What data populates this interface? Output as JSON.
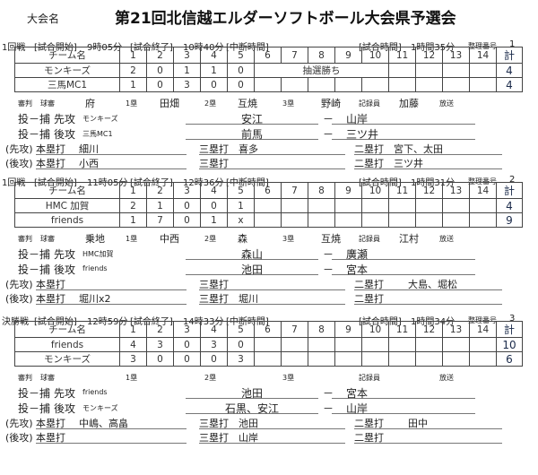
{
  "tournament_label": "大会名",
  "title": "第21回北信越エルダーソフトボール大会県予選会",
  "labels": {
    "start": "[試合開始]",
    "end": "[試合終了]",
    "break": "[中断時間]",
    "duration": "[試合時間]",
    "number": "整理番号",
    "team_col": "チーム名",
    "total_col": "計",
    "innings": [
      "1",
      "2",
      "3",
      "4",
      "5",
      "6",
      "7",
      "8",
      "9",
      "10",
      "11",
      "12",
      "13",
      "14"
    ],
    "umpire": "審判",
    "plate": "球審",
    "first": "1塁",
    "second": "2塁",
    "third": "3塁",
    "recorder": "記録員",
    "broadcast": "放送",
    "battery": "投－捕",
    "top": "先攻",
    "bottom": "後攻",
    "top_paren": "(先攻)",
    "bottom_paren": "(後攻)",
    "hr": "本塁打",
    "triple": "三塁打",
    "double": "二塁打",
    "dash": "－"
  },
  "games": [
    {
      "round": "1回戦",
      "start": "9時05分",
      "end": "10時40分",
      "duration": "1時間35分",
      "number": "1",
      "teams": [
        {
          "name": "モンキーズ",
          "innings": [
            "2",
            "0",
            "1",
            "1",
            "0",
            "",
            "",
            "",
            "",
            "",
            "",
            "",
            "",
            ""
          ],
          "total": "4"
        },
        {
          "name": "三馬MC1",
          "innings": [
            "1",
            "0",
            "3",
            "0",
            "0",
            "",
            "",
            "",
            "",
            "",
            "",
            "",
            "",
            ""
          ],
          "total": "4"
        }
      ],
      "note": "抽選勝ち",
      "officials": {
        "plate": "府",
        "first": "田畑",
        "second": "互焼",
        "third": "野崎",
        "recorder": "加藤",
        "broadcast": ""
      },
      "battery": [
        {
          "team": "モンキーズ",
          "pitcher": "安江",
          "catcher": "山岸"
        },
        {
          "team": "三馬MC1",
          "pitcher": "前馬",
          "catcher": "三ツ井"
        }
      ],
      "hits": [
        {
          "hr": "細川",
          "triple": "喜多",
          "double": "宮下、太田"
        },
        {
          "hr": "小西",
          "triple": "",
          "double": "三ツ井"
        }
      ]
    },
    {
      "round": "1回戦",
      "start": "11時05分",
      "end": "12時36分",
      "duration": "1時間31分",
      "number": "2",
      "teams": [
        {
          "name": "HMC 加賀",
          "innings": [
            "2",
            "1",
            "0",
            "0",
            "1",
            "",
            "",
            "",
            "",
            "",
            "",
            "",
            "",
            ""
          ],
          "total": "4"
        },
        {
          "name": "friends",
          "innings": [
            "1",
            "7",
            "0",
            "1",
            "x",
            "",
            "",
            "",
            "",
            "",
            "",
            "",
            "",
            ""
          ],
          "total": "9"
        }
      ],
      "note": "",
      "officials": {
        "plate": "乗地",
        "first": "中西",
        "second": "森",
        "third": "互焼",
        "recorder": "江村",
        "broadcast": ""
      },
      "battery": [
        {
          "team": "HMC加賀",
          "pitcher": "森山",
          "catcher": "廣瀬"
        },
        {
          "team": "friends",
          "pitcher": "池田",
          "catcher": "宮本"
        }
      ],
      "hits": [
        {
          "hr": "",
          "triple": "",
          "double": "大島、堀松"
        },
        {
          "hr": "堀川x2",
          "triple": "堀川",
          "double": ""
        }
      ]
    },
    {
      "round": "決勝戦",
      "start": "12時59分",
      "end": "14時33分",
      "duration": "1時間34分",
      "number": "3",
      "teams": [
        {
          "name": "friends",
          "innings": [
            "4",
            "3",
            "0",
            "3",
            "0",
            "",
            "",
            "",
            "",
            "",
            "",
            "",
            "",
            ""
          ],
          "total": "10"
        },
        {
          "name": "モンキーズ",
          "innings": [
            "3",
            "0",
            "0",
            "0",
            "3",
            "",
            "",
            "",
            "",
            "",
            "",
            "",
            "",
            ""
          ],
          "total": "6"
        }
      ],
      "note": "",
      "officials": {
        "plate": "",
        "first": "",
        "second": "",
        "third": "",
        "recorder": "",
        "broadcast": ""
      },
      "battery": [
        {
          "team": "friends",
          "pitcher": "池田",
          "catcher": "宮本"
        },
        {
          "team": "モンキーズ",
          "pitcher": "石黒、安江",
          "catcher": "山岸"
        }
      ],
      "hits": [
        {
          "hr": "中嶋、高畠",
          "triple": "池田",
          "double": "田中"
        },
        {
          "hr": "",
          "triple": "山岸",
          "double": ""
        }
      ]
    }
  ]
}
